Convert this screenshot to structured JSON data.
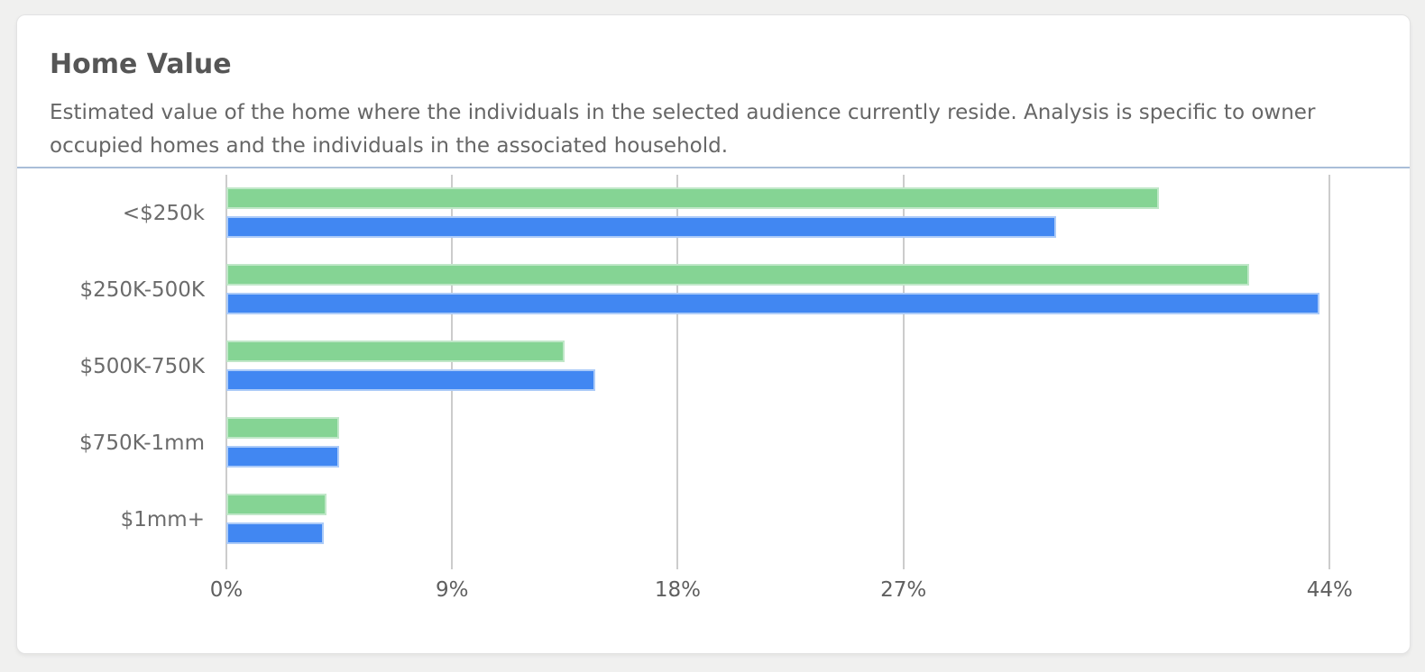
{
  "card": {
    "title": "Home Value",
    "description": "Estimated value of the home where the individuals in the selected audience currently reside. Analysis is specific to owner occupied homes and the individuals in the associated household."
  },
  "colors": {
    "page_background": "#f0f0ef",
    "card_background": "#ffffff",
    "header_divider": "#a9bed8",
    "gridline": "#cccccc",
    "title_text": "#565656",
    "body_text": "#666666",
    "axis_text": "#5f5f5f",
    "green_bar": "#85d494",
    "blue_bar": "#4187f2"
  },
  "chart_data": {
    "type": "bar",
    "orientation": "horizontal",
    "title": "Home Value",
    "categories": [
      "<$250k",
      "$250K-500K",
      "$500K-750K",
      "$750K-1mm",
      "$1mm+"
    ],
    "series": [
      {
        "name": "green",
        "color": "#85d494",
        "border_color": "#c0e7c8",
        "values": [
          37.2,
          40.8,
          13.5,
          4.5,
          4.0
        ]
      },
      {
        "name": "blue",
        "color": "#4187f2",
        "border_color": "#accbf8",
        "values": [
          33.1,
          43.6,
          14.7,
          4.5,
          3.9
        ]
      }
    ],
    "value_unit": "%",
    "x_ticks": [
      {
        "label": "0%",
        "value": 0
      },
      {
        "label": "9%",
        "value": 9
      },
      {
        "label": "18%",
        "value": 18
      },
      {
        "label": "27%",
        "value": 27
      },
      {
        "label": "44%",
        "value": 44
      }
    ],
    "x_axis_max": 46.4,
    "xlabel": "",
    "ylabel": "",
    "grid": "vertical",
    "legend": "none"
  }
}
